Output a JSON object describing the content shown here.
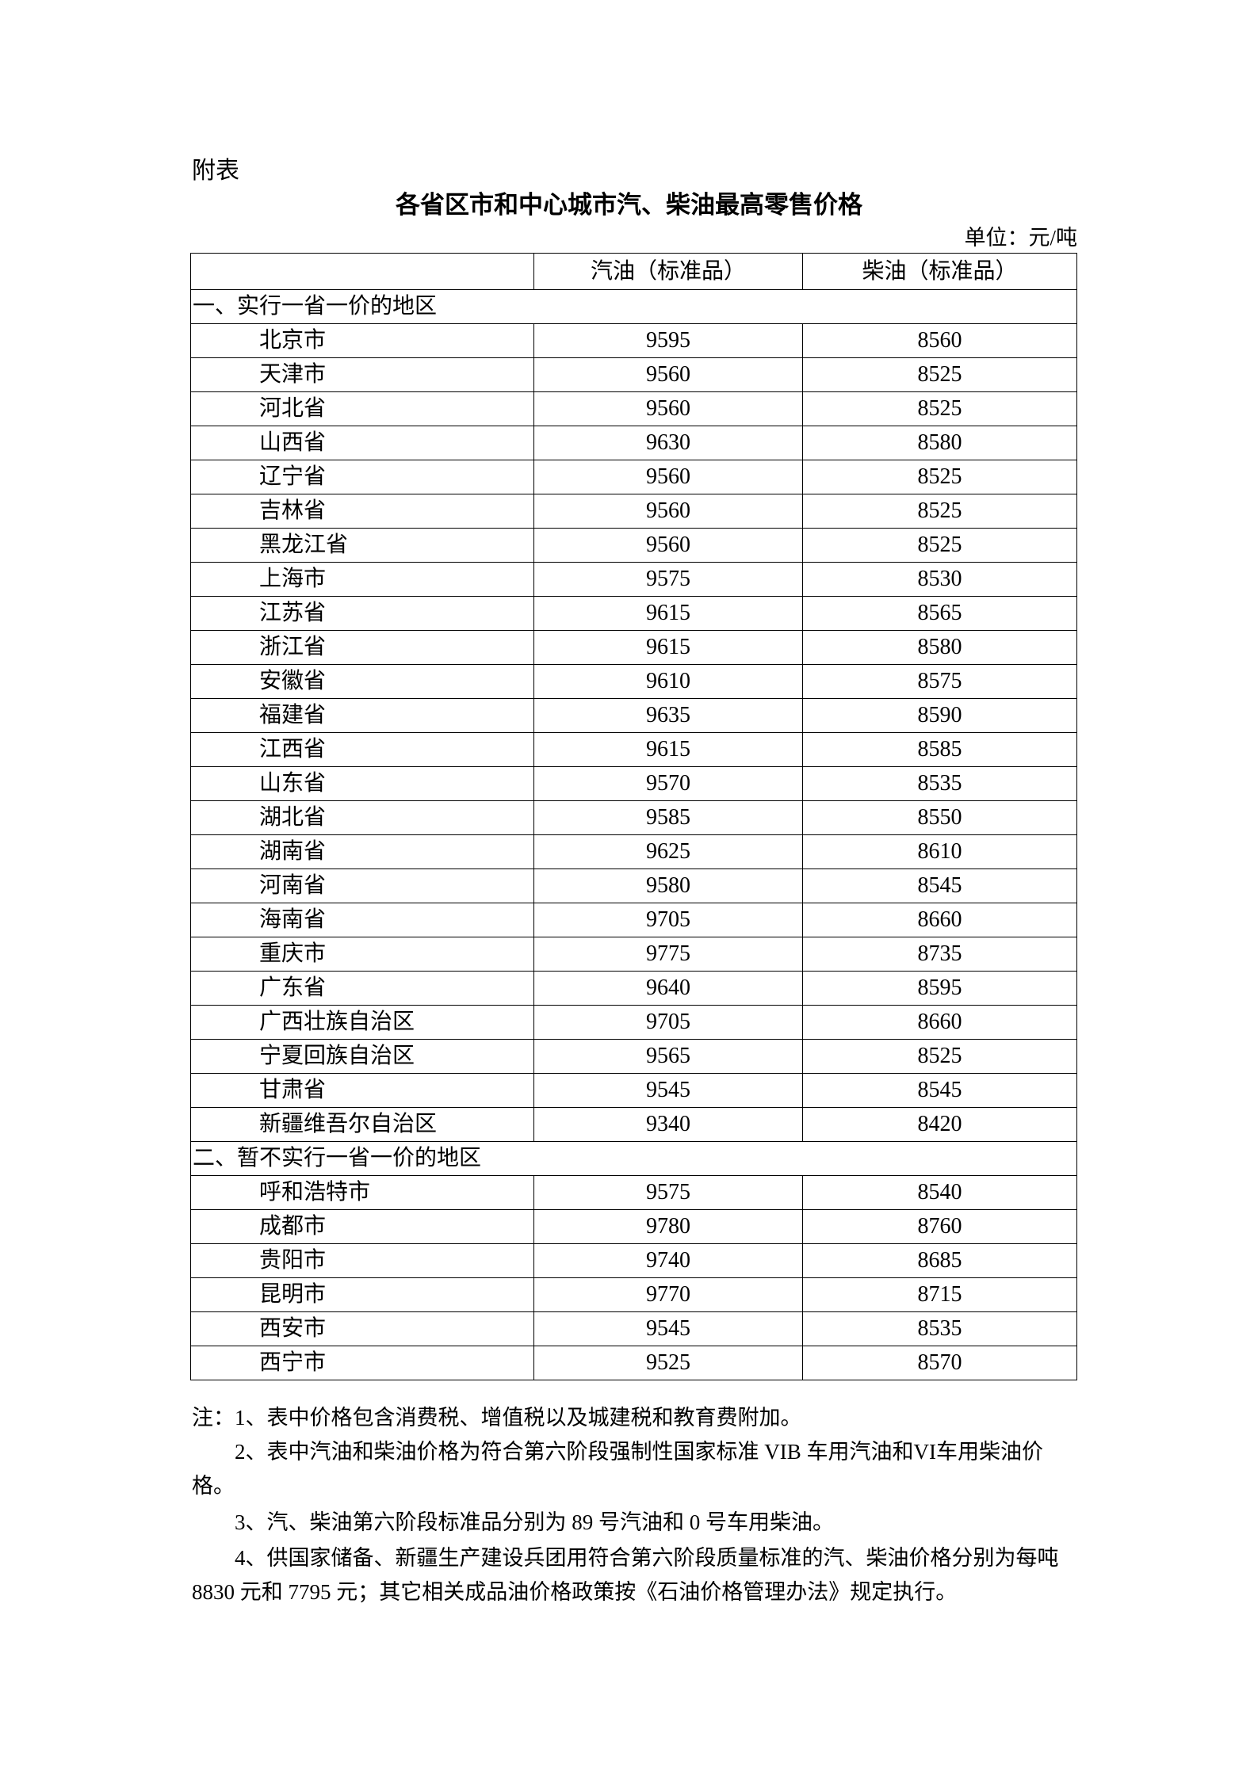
{
  "attachment_label": "附表",
  "title": "各省区市和中心城市汽、柴油最高零售价格",
  "unit": "单位：元/吨",
  "table": {
    "headers": [
      "",
      "汽油（标准品）",
      "柴油（标准品）"
    ],
    "sections": [
      {
        "label": "一、实行一省一价的地区",
        "rows": [
          [
            "北京市",
            "9595",
            "8560"
          ],
          [
            "天津市",
            "9560",
            "8525"
          ],
          [
            "河北省",
            "9560",
            "8525"
          ],
          [
            "山西省",
            "9630",
            "8580"
          ],
          [
            "辽宁省",
            "9560",
            "8525"
          ],
          [
            "吉林省",
            "9560",
            "8525"
          ],
          [
            "黑龙江省",
            "9560",
            "8525"
          ],
          [
            "上海市",
            "9575",
            "8530"
          ],
          [
            "江苏省",
            "9615",
            "8565"
          ],
          [
            "浙江省",
            "9615",
            "8580"
          ],
          [
            "安徽省",
            "9610",
            "8575"
          ],
          [
            "福建省",
            "9635",
            "8590"
          ],
          [
            "江西省",
            "9615",
            "8585"
          ],
          [
            "山东省",
            "9570",
            "8535"
          ],
          [
            "湖北省",
            "9585",
            "8550"
          ],
          [
            "湖南省",
            "9625",
            "8610"
          ],
          [
            "河南省",
            "9580",
            "8545"
          ],
          [
            "海南省",
            "9705",
            "8660"
          ],
          [
            "重庆市",
            "9775",
            "8735"
          ],
          [
            "广东省",
            "9640",
            "8595"
          ],
          [
            "广西壮族自治区",
            "9705",
            "8660"
          ],
          [
            "宁夏回族自治区",
            "9565",
            "8525"
          ],
          [
            "甘肃省",
            "9545",
            "8545"
          ],
          [
            "新疆维吾尔自治区",
            "9340",
            "8420"
          ]
        ]
      },
      {
        "label": "二、暂不实行一省一价的地区",
        "rows": [
          [
            "呼和浩特市",
            "9575",
            "8540"
          ],
          [
            "成都市",
            "9780",
            "8760"
          ],
          [
            "贵阳市",
            "9740",
            "8685"
          ],
          [
            "昆明市",
            "9770",
            "8715"
          ],
          [
            "西安市",
            "9545",
            "8535"
          ],
          [
            "西宁市",
            "9525",
            "8570"
          ]
        ]
      }
    ]
  },
  "notes": [
    "注：1、表中价格包含消费税、增值税以及城建税和教育费附加。",
    "2、表中汽油和柴油价格为符合第六阶段强制性国家标准 VIB 车用汽油和VI车用柴油价格。",
    "3、汽、柴油第六阶段标准品分别为 89 号汽油和 0 号车用柴油。",
    "4、供国家储备、新疆生产建设兵团用符合第六阶段质量标准的汽、柴油价格分别为每吨 8830 元和 7795 元；其它相关成品油价格政策按《石油价格管理办法》规定执行。"
  ]
}
